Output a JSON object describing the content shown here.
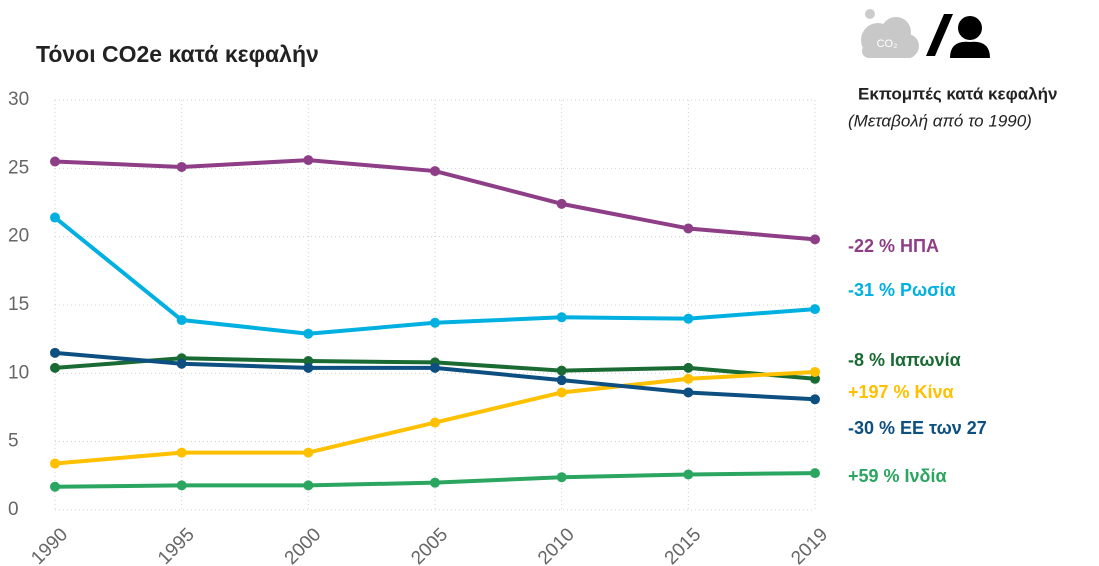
{
  "chart_data": {
    "type": "line",
    "title": "Τόνοι CO2e κατά κεφαλήν",
    "subtitle": "Εκπομπές κατά κεφαλήν",
    "note": "(Μεταβολή από το 1990)",
    "icon_text": "CO₂",
    "categories": [
      "1990",
      "1995",
      "2000",
      "2005",
      "2010",
      "2015",
      "2019"
    ],
    "ylim": [
      0,
      30
    ],
    "yticks": [
      0,
      5,
      10,
      15,
      20,
      25,
      30
    ],
    "grid": true,
    "series": [
      {
        "name": "-22 % ΗΠΑ",
        "color": "#8e3e87",
        "values": [
          25.5,
          25.1,
          25.6,
          24.8,
          22.4,
          20.6,
          19.8
        ]
      },
      {
        "name": "-31 % Ρωσία",
        "color": "#00b0e0",
        "values": [
          21.4,
          13.9,
          12.9,
          13.7,
          14.1,
          14.0,
          14.7
        ]
      },
      {
        "name": "-8 % Ιαπωνία",
        "color": "#1a6b33",
        "values": [
          10.4,
          11.1,
          10.9,
          10.8,
          10.2,
          10.4,
          9.6
        ]
      },
      {
        "name": "+197 % Κίνα",
        "color": "#ffc000",
        "values": [
          3.4,
          4.2,
          4.2,
          6.4,
          8.6,
          9.6,
          10.1
        ]
      },
      {
        "name": "-30 % ΕΕ των 27",
        "color": "#0d4f80",
        "values": [
          11.5,
          10.7,
          10.4,
          10.4,
          9.5,
          8.6,
          8.1
        ]
      },
      {
        "name": "+59 % Ινδία",
        "color": "#2aa660",
        "values": [
          1.7,
          1.8,
          1.8,
          2.0,
          2.4,
          2.6,
          2.7
        ]
      }
    ]
  }
}
